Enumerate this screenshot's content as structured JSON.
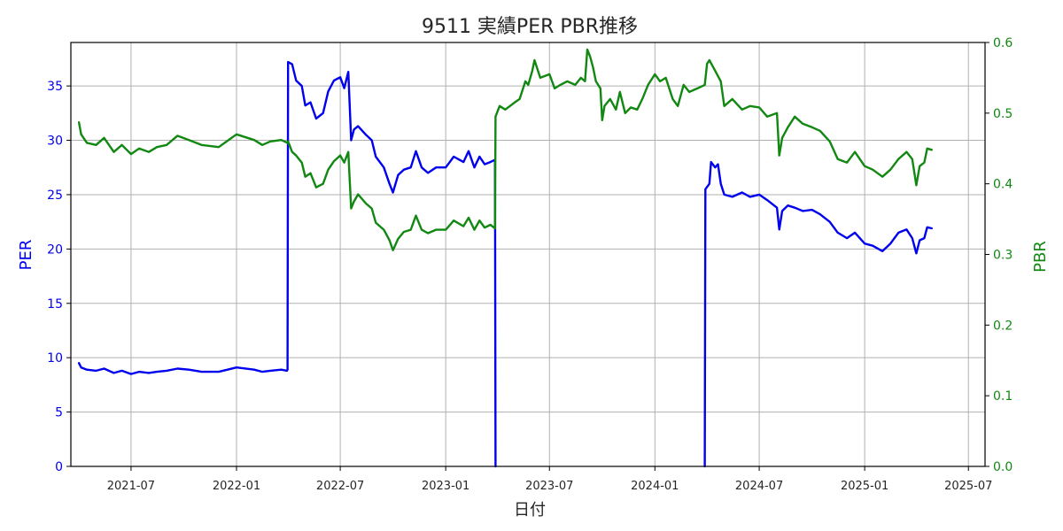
{
  "chart_data": {
    "type": "line",
    "title": "9511 実績PER PBR推移",
    "xlabel": "日付",
    "ylabel_left": "PER",
    "ylabel_right": "PBR",
    "x_ticks": [
      "2021-07",
      "2022-01",
      "2022-07",
      "2023-01",
      "2023-07",
      "2024-01",
      "2024-07",
      "2025-01",
      "2025-07"
    ],
    "xlim": [
      "2021-03-18",
      "2025-07-30"
    ],
    "ylim_left": [
      0,
      39
    ],
    "ylim_right": [
      0,
      0.6
    ],
    "y_ticks_left": [
      0,
      5,
      10,
      15,
      20,
      25,
      30,
      35
    ],
    "y_ticks_right": [
      0.0,
      0.1,
      0.2,
      0.3,
      0.4,
      0.5,
      0.6
    ],
    "grid": true,
    "colors": {
      "PER": "#0000ee",
      "PBR": "#118811",
      "grid": "#b0b0b0",
      "axis": "#000000"
    },
    "series": [
      {
        "axis": "left",
        "color": "#0000ee",
        "points": [
          [
            "2021-04-01",
            9.5
          ],
          [
            "2021-04-05",
            9.1
          ],
          [
            "2021-04-15",
            8.9
          ],
          [
            "2021-05-01",
            8.8
          ],
          [
            "2021-05-15",
            9.0
          ],
          [
            "2021-06-01",
            8.6
          ],
          [
            "2021-06-15",
            8.8
          ],
          [
            "2021-07-01",
            8.5
          ],
          [
            "2021-07-15",
            8.7
          ],
          [
            "2021-08-01",
            8.6
          ],
          [
            "2021-08-15",
            8.7
          ],
          [
            "2021-09-01",
            8.8
          ],
          [
            "2021-09-20",
            9.0
          ],
          [
            "2021-10-10",
            8.9
          ],
          [
            "2021-11-01",
            8.7
          ],
          [
            "2021-12-01",
            8.7
          ],
          [
            "2022-01-01",
            9.1
          ],
          [
            "2022-02-01",
            8.9
          ],
          [
            "2022-02-15",
            8.7
          ],
          [
            "2022-03-01",
            8.8
          ],
          [
            "2022-03-20",
            8.9
          ],
          [
            "2022-03-30",
            8.8
          ],
          [
            "2022-03-31",
            8.9
          ],
          [
            "2022-04-01",
            37.2
          ],
          [
            "2022-04-08",
            37.0
          ],
          [
            "2022-04-15",
            35.5
          ],
          [
            "2022-04-25",
            35.0
          ],
          [
            "2022-05-01",
            33.2
          ],
          [
            "2022-05-10",
            33.5
          ],
          [
            "2022-05-20",
            32.0
          ],
          [
            "2022-06-01",
            32.5
          ],
          [
            "2022-06-10",
            34.5
          ],
          [
            "2022-06-20",
            35.5
          ],
          [
            "2022-07-01",
            35.8
          ],
          [
            "2022-07-08",
            34.8
          ],
          [
            "2022-07-15",
            36.3
          ],
          [
            "2022-07-20",
            30.0
          ],
          [
            "2022-07-25",
            31.0
          ],
          [
            "2022-08-01",
            31.3
          ],
          [
            "2022-08-15",
            30.5
          ],
          [
            "2022-08-25",
            30.0
          ],
          [
            "2022-09-01",
            28.5
          ],
          [
            "2022-09-15",
            27.5
          ],
          [
            "2022-09-25",
            26.0
          ],
          [
            "2022-10-01",
            25.2
          ],
          [
            "2022-10-10",
            26.8
          ],
          [
            "2022-10-20",
            27.3
          ],
          [
            "2022-11-01",
            27.5
          ],
          [
            "2022-11-10",
            29.0
          ],
          [
            "2022-11-20",
            27.5
          ],
          [
            "2022-12-01",
            27.0
          ],
          [
            "2022-12-15",
            27.5
          ],
          [
            "2023-01-01",
            27.5
          ],
          [
            "2023-01-15",
            28.5
          ],
          [
            "2023-02-01",
            28.0
          ],
          [
            "2023-02-10",
            29.0
          ],
          [
            "2023-02-20",
            27.5
          ],
          [
            "2023-03-01",
            28.5
          ],
          [
            "2023-03-10",
            27.8
          ],
          [
            "2023-03-20",
            28.0
          ],
          [
            "2023-03-28",
            28.2
          ],
          [
            "2023-03-29",
            0.0
          ]
        ]
      },
      {
        "axis": "left",
        "color": "#0000ee",
        "points": [
          [
            "2024-03-28",
            0.0
          ],
          [
            "2024-03-29",
            25.5
          ],
          [
            "2024-04-05",
            26.0
          ],
          [
            "2024-04-08",
            28.0
          ],
          [
            "2024-04-15",
            27.5
          ],
          [
            "2024-04-20",
            27.8
          ],
          [
            "2024-04-25",
            26.0
          ],
          [
            "2024-05-01",
            25.0
          ],
          [
            "2024-05-15",
            24.8
          ],
          [
            "2024-06-01",
            25.2
          ],
          [
            "2024-06-15",
            24.8
          ],
          [
            "2024-07-01",
            25.0
          ],
          [
            "2024-07-15",
            24.5
          ],
          [
            "2024-08-01",
            23.8
          ],
          [
            "2024-08-05",
            21.8
          ],
          [
            "2024-08-10",
            23.5
          ],
          [
            "2024-08-20",
            24.0
          ],
          [
            "2024-09-01",
            23.8
          ],
          [
            "2024-09-15",
            23.5
          ],
          [
            "2024-10-01",
            23.6
          ],
          [
            "2024-10-15",
            23.2
          ],
          [
            "2024-11-01",
            22.5
          ],
          [
            "2024-11-15",
            21.5
          ],
          [
            "2024-12-01",
            21.0
          ],
          [
            "2024-12-15",
            21.5
          ],
          [
            "2025-01-01",
            20.5
          ],
          [
            "2025-01-15",
            20.3
          ],
          [
            "2025-02-01",
            19.8
          ],
          [
            "2025-02-15",
            20.5
          ],
          [
            "2025-03-01",
            21.5
          ],
          [
            "2025-03-15",
            21.8
          ],
          [
            "2025-03-25",
            21.0
          ],
          [
            "2025-04-01",
            19.6
          ],
          [
            "2025-04-07",
            20.8
          ],
          [
            "2025-04-15",
            21.0
          ],
          [
            "2025-04-20",
            22.0
          ],
          [
            "2025-04-28",
            21.9
          ]
        ]
      },
      {
        "axis": "right",
        "color": "#118811",
        "points": [
          [
            "2021-04-01",
            0.487
          ],
          [
            "2021-04-05",
            0.47
          ],
          [
            "2021-04-15",
            0.458
          ],
          [
            "2021-05-01",
            0.455
          ],
          [
            "2021-05-15",
            0.465
          ],
          [
            "2021-06-01",
            0.445
          ],
          [
            "2021-06-15",
            0.455
          ],
          [
            "2021-07-01",
            0.442
          ],
          [
            "2021-07-15",
            0.45
          ],
          [
            "2021-08-01",
            0.445
          ],
          [
            "2021-08-15",
            0.452
          ],
          [
            "2021-09-01",
            0.455
          ],
          [
            "2021-09-20",
            0.468
          ],
          [
            "2021-10-10",
            0.462
          ],
          [
            "2021-11-01",
            0.455
          ],
          [
            "2021-12-01",
            0.452
          ],
          [
            "2022-01-01",
            0.47
          ],
          [
            "2022-02-01",
            0.462
          ],
          [
            "2022-02-15",
            0.455
          ],
          [
            "2022-03-01",
            0.46
          ],
          [
            "2022-03-20",
            0.462
          ],
          [
            "2022-03-31",
            0.458
          ],
          [
            "2022-04-01",
            0.46
          ],
          [
            "2022-04-08",
            0.445
          ],
          [
            "2022-04-15",
            0.44
          ],
          [
            "2022-04-25",
            0.43
          ],
          [
            "2022-05-01",
            0.41
          ],
          [
            "2022-05-10",
            0.415
          ],
          [
            "2022-05-20",
            0.395
          ],
          [
            "2022-06-01",
            0.4
          ],
          [
            "2022-06-10",
            0.42
          ],
          [
            "2022-06-20",
            0.432
          ],
          [
            "2022-07-01",
            0.44
          ],
          [
            "2022-07-08",
            0.43
          ],
          [
            "2022-07-15",
            0.445
          ],
          [
            "2022-07-20",
            0.365
          ],
          [
            "2022-07-25",
            0.375
          ],
          [
            "2022-08-01",
            0.385
          ],
          [
            "2022-08-15",
            0.372
          ],
          [
            "2022-08-25",
            0.365
          ],
          [
            "2022-09-01",
            0.345
          ],
          [
            "2022-09-15",
            0.335
          ],
          [
            "2022-09-25",
            0.32
          ],
          [
            "2022-10-01",
            0.306
          ],
          [
            "2022-10-10",
            0.322
          ],
          [
            "2022-10-20",
            0.332
          ],
          [
            "2022-11-01",
            0.335
          ],
          [
            "2022-11-10",
            0.355
          ],
          [
            "2022-11-20",
            0.335
          ],
          [
            "2022-12-01",
            0.33
          ],
          [
            "2022-12-15",
            0.335
          ],
          [
            "2023-01-01",
            0.335
          ],
          [
            "2023-01-15",
            0.348
          ],
          [
            "2023-02-01",
            0.34
          ],
          [
            "2023-02-10",
            0.352
          ],
          [
            "2023-02-20",
            0.335
          ],
          [
            "2023-03-01",
            0.348
          ],
          [
            "2023-03-10",
            0.338
          ],
          [
            "2023-03-20",
            0.342
          ],
          [
            "2023-03-28",
            0.337
          ],
          [
            "2023-03-29",
            0.495
          ],
          [
            "2023-04-05",
            0.51
          ],
          [
            "2023-04-15",
            0.505
          ],
          [
            "2023-05-01",
            0.515
          ],
          [
            "2023-05-10",
            0.52
          ],
          [
            "2023-05-20",
            0.545
          ],
          [
            "2023-05-25",
            0.54
          ],
          [
            "2023-06-01",
            0.56
          ],
          [
            "2023-06-05",
            0.575
          ],
          [
            "2023-06-15",
            0.55
          ],
          [
            "2023-07-01",
            0.555
          ],
          [
            "2023-07-10",
            0.535
          ],
          [
            "2023-07-20",
            0.54
          ],
          [
            "2023-08-01",
            0.545
          ],
          [
            "2023-08-15",
            0.54
          ],
          [
            "2023-08-25",
            0.55
          ],
          [
            "2023-09-01",
            0.545
          ],
          [
            "2023-09-05",
            0.59
          ],
          [
            "2023-09-10",
            0.58
          ],
          [
            "2023-09-15",
            0.565
          ],
          [
            "2023-09-20",
            0.545
          ],
          [
            "2023-09-28",
            0.535
          ],
          [
            "2023-10-01",
            0.49
          ],
          [
            "2023-10-05",
            0.51
          ],
          [
            "2023-10-15",
            0.52
          ],
          [
            "2023-10-25",
            0.505
          ],
          [
            "2023-11-01",
            0.53
          ],
          [
            "2023-11-10",
            0.5
          ],
          [
            "2023-11-20",
            0.508
          ],
          [
            "2023-12-01",
            0.505
          ],
          [
            "2023-12-10",
            0.52
          ],
          [
            "2023-12-20",
            0.54
          ],
          [
            "2024-01-01",
            0.555
          ],
          [
            "2024-01-10",
            0.545
          ],
          [
            "2024-01-20",
            0.55
          ],
          [
            "2024-02-01",
            0.52
          ],
          [
            "2024-02-10",
            0.51
          ],
          [
            "2024-02-20",
            0.54
          ],
          [
            "2024-03-01",
            0.53
          ],
          [
            "2024-03-15",
            0.535
          ],
          [
            "2024-03-28",
            0.54
          ],
          [
            "2024-04-01",
            0.57
          ],
          [
            "2024-04-05",
            0.575
          ],
          [
            "2024-04-15",
            0.56
          ],
          [
            "2024-04-25",
            0.545
          ],
          [
            "2024-05-01",
            0.51
          ],
          [
            "2024-05-15",
            0.52
          ],
          [
            "2024-06-01",
            0.505
          ],
          [
            "2024-06-15",
            0.51
          ],
          [
            "2024-07-01",
            0.508
          ],
          [
            "2024-07-15",
            0.495
          ],
          [
            "2024-08-01",
            0.5
          ],
          [
            "2024-08-05",
            0.44
          ],
          [
            "2024-08-10",
            0.465
          ],
          [
            "2024-08-20",
            0.48
          ],
          [
            "2024-09-01",
            0.495
          ],
          [
            "2024-09-15",
            0.485
          ],
          [
            "2024-10-01",
            0.48
          ],
          [
            "2024-10-15",
            0.475
          ],
          [
            "2024-11-01",
            0.46
          ],
          [
            "2024-11-15",
            0.435
          ],
          [
            "2024-12-01",
            0.43
          ],
          [
            "2024-12-15",
            0.445
          ],
          [
            "2025-01-01",
            0.425
          ],
          [
            "2025-01-15",
            0.42
          ],
          [
            "2025-02-01",
            0.41
          ],
          [
            "2025-02-15",
            0.42
          ],
          [
            "2025-03-01",
            0.435
          ],
          [
            "2025-03-15",
            0.445
          ],
          [
            "2025-03-25",
            0.435
          ],
          [
            "2025-04-01",
            0.398
          ],
          [
            "2025-04-07",
            0.425
          ],
          [
            "2025-04-15",
            0.43
          ],
          [
            "2025-04-20",
            0.45
          ],
          [
            "2025-04-28",
            0.448
          ]
        ]
      }
    ]
  }
}
